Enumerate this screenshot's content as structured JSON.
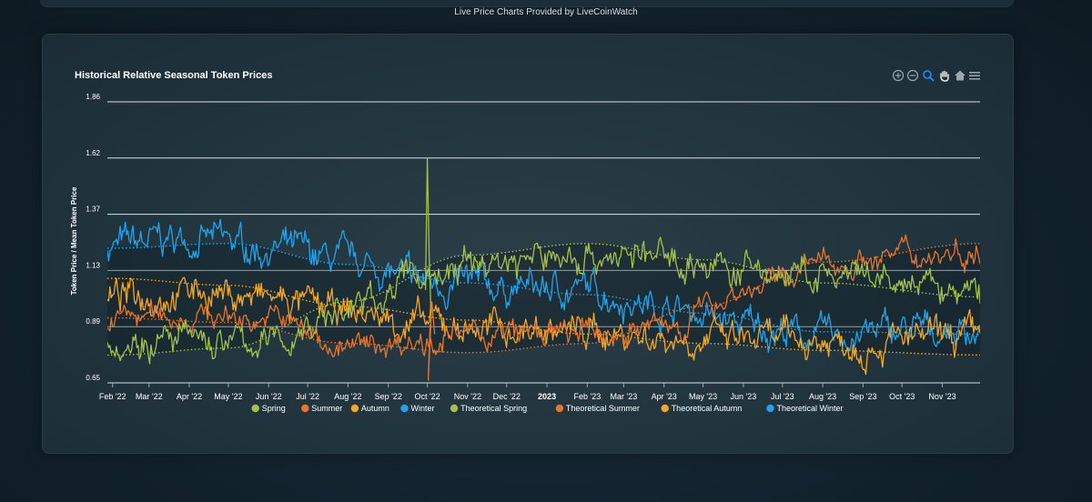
{
  "header": {
    "credit": "Live Price Charts Provided by LiveCoinWatch"
  },
  "toolbar": {
    "icons": [
      "zoom-in-icon",
      "zoom-out-icon",
      "zoom-select-icon",
      "pan-hand-icon",
      "home-reset-icon",
      "menu-icon"
    ],
    "active_color": "#1e90ff"
  },
  "chart_data": {
    "type": "line",
    "title": "Historical Relative Seasonal Token Prices",
    "ylabel": "Token Price / Mean Token Price",
    "xlabel": "",
    "ylim": [
      0.65,
      1.86
    ],
    "yticks": [
      "1.86",
      "1.62",
      "1.37",
      "1.13",
      "0.89",
      "0.65"
    ],
    "xticks": [
      "Feb '22",
      "Mar '22",
      "Apr '22",
      "May '22",
      "Jun '22",
      "Jul '22",
      "Aug '22",
      "Sep '22",
      "Oct '22",
      "Nov '22",
      "Dec '22",
      "2023",
      "Feb '23",
      "Mar '23",
      "Apr '23",
      "May '23",
      "Jun '23",
      "Jul '23",
      "Aug '23",
      "Sep '23",
      "Oct '23",
      "Nov '23"
    ],
    "xrange": [
      "2022-01-28",
      "2023-11-30"
    ],
    "legend_position": "bottom",
    "grid": true,
    "series": [
      {
        "name": "Spring",
        "color": "#a3c14a",
        "type": "actual"
      },
      {
        "name": "Summer",
        "color": "#e8742c",
        "type": "actual"
      },
      {
        "name": "Autumn",
        "color": "#f5a623",
        "type": "actual"
      },
      {
        "name": "Winter",
        "color": "#1fa3ec",
        "type": "actual"
      },
      {
        "name": "Theoretical Spring",
        "color": "#a3c14a",
        "type": "theoretical"
      },
      {
        "name": "Theoretical Summer",
        "color": "#e8742c",
        "type": "theoretical"
      },
      {
        "name": "Theoretical Autumn",
        "color": "#f5a623",
        "type": "theoretical"
      },
      {
        "name": "Theoretical Winter",
        "color": "#1fa3ec",
        "type": "theoretical"
      }
    ],
    "actual_profiles": {
      "Spring": {
        "x": [
          "2022-02-01",
          "2022-04-01",
          "2022-06-01",
          "2022-08-01",
          "2022-10-01",
          "2022-12-01",
          "2023-02-01",
          "2023-04-01",
          "2023-06-01",
          "2023-08-01",
          "2023-10-01",
          "2023-11-30"
        ],
        "y": [
          0.84,
          0.83,
          0.82,
          0.97,
          1.12,
          1.18,
          1.2,
          1.19,
          1.13,
          1.1,
          1.07,
          1.03
        ],
        "noise": 0.05
      },
      "Summer": {
        "x": [
          "2022-02-01",
          "2022-04-01",
          "2022-06-01",
          "2022-08-01",
          "2022-10-01",
          "2022-12-01",
          "2023-02-01",
          "2023-04-01",
          "2023-06-01",
          "2023-08-01",
          "2023-10-01",
          "2023-11-30"
        ],
        "y": [
          0.93,
          0.94,
          0.93,
          0.8,
          0.84,
          0.86,
          0.86,
          0.89,
          1.05,
          1.16,
          1.2,
          1.22
        ],
        "noise": 0.04
      },
      "Autumn": {
        "x": [
          "2022-02-01",
          "2022-04-01",
          "2022-06-01",
          "2022-08-01",
          "2022-10-01",
          "2022-12-01",
          "2023-02-01",
          "2023-04-01",
          "2023-06-01",
          "2023-08-01",
          "2023-10-01",
          "2023-11-30"
        ],
        "y": [
          1.02,
          1.05,
          1.01,
          0.95,
          0.9,
          0.88,
          0.87,
          0.85,
          0.83,
          0.83,
          0.83,
          0.84
        ],
        "noise": 0.05
      },
      "Winter": {
        "x": [
          "2022-02-01",
          "2022-04-01",
          "2022-06-01",
          "2022-08-01",
          "2022-10-01",
          "2022-12-01",
          "2023-02-01",
          "2023-04-01",
          "2023-06-01",
          "2023-08-01",
          "2023-10-01",
          "2023-11-30"
        ],
        "y": [
          1.24,
          1.27,
          1.23,
          1.17,
          1.08,
          1.06,
          1.05,
          0.98,
          0.9,
          0.85,
          0.87,
          0.88
        ],
        "noise": 0.05
      }
    },
    "theoretical_profiles": {
      "Theoretical Spring": {
        "x": [
          "2022-02-01",
          "2022-05-01",
          "2022-08-01",
          "2022-11-01",
          "2023-02-01",
          "2023-05-01",
          "2023-08-01",
          "2023-11-30"
        ],
        "y": [
          0.77,
          0.8,
          1.0,
          1.2,
          1.25,
          1.18,
          1.08,
          1.02
        ]
      },
      "Theoretical Summer": {
        "x": [
          "2022-02-01",
          "2022-05-01",
          "2022-08-01",
          "2022-11-01",
          "2023-02-01",
          "2023-05-01",
          "2023-08-01",
          "2023-11-30"
        ],
        "y": [
          0.93,
          0.91,
          0.82,
          0.78,
          0.82,
          0.98,
          1.17,
          1.25
        ]
      },
      "Theoretical Autumn": {
        "x": [
          "2022-02-01",
          "2022-05-01",
          "2022-08-01",
          "2022-11-01",
          "2023-02-01",
          "2023-05-01",
          "2023-08-01",
          "2023-11-30"
        ],
        "y": [
          1.1,
          1.07,
          0.98,
          0.92,
          0.86,
          0.82,
          0.79,
          0.77
        ]
      },
      "Theoretical Winter": {
        "x": [
          "2022-02-01",
          "2022-05-01",
          "2022-08-01",
          "2022-11-01",
          "2023-02-01",
          "2023-05-01",
          "2023-08-01",
          "2023-11-30"
        ],
        "y": [
          1.23,
          1.25,
          1.16,
          1.08,
          1.03,
          0.95,
          0.87,
          0.86
        ]
      }
    },
    "annotations": [
      {
        "x": "2022-10-01",
        "series": "Spring",
        "peak": 1.62,
        "trough": 0.66
      }
    ]
  }
}
